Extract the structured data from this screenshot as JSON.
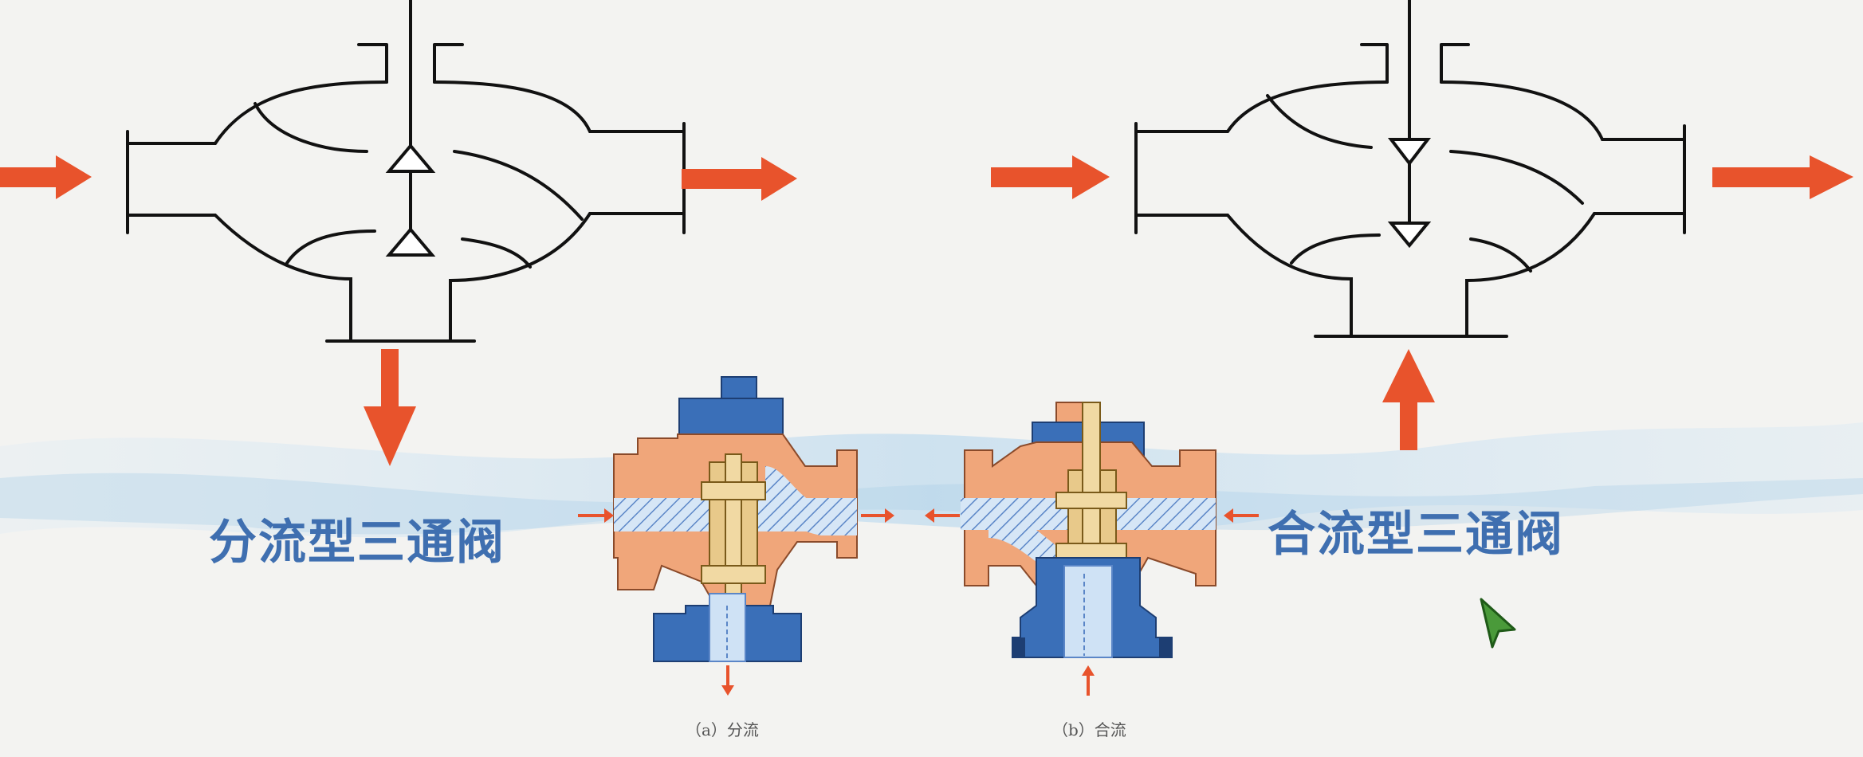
{
  "labels": {
    "diverting": "分流型三通阀",
    "mixing": "合流型三通阀"
  },
  "captions": {
    "a": "（a）分流",
    "b": "（b）合流"
  },
  "colors": {
    "arrow": "#e8532c",
    "label": "#3f6fb0",
    "body": "#f0a67a",
    "blue": "#3a6fb8",
    "flow": "#cfe2f5",
    "brass": "#e8c98a",
    "line": "#111111"
  },
  "icons": {
    "cursor": "cursor-arrow-icon"
  }
}
